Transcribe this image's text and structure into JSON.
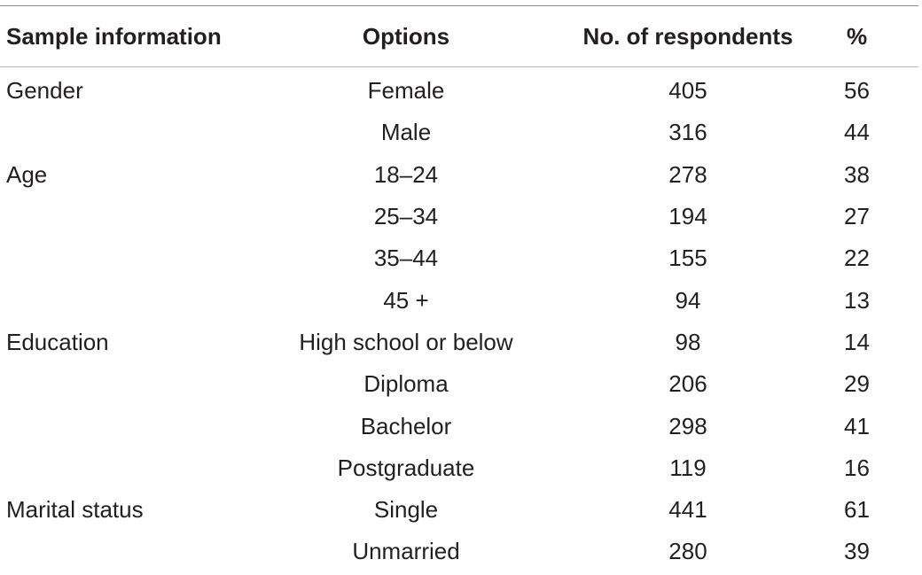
{
  "table": {
    "headers": {
      "info": "Sample information",
      "options": "Options",
      "respondents": "No. of respondents",
      "percent": "%"
    },
    "rows": [
      {
        "category": "Gender",
        "option": "Female",
        "count": "405",
        "percent": "56"
      },
      {
        "category": "",
        "option": "Male",
        "count": "316",
        "percent": "44"
      },
      {
        "category": "Age",
        "option": "18–24",
        "count": "278",
        "percent": "38"
      },
      {
        "category": "",
        "option": "25–34",
        "count": "194",
        "percent": "27"
      },
      {
        "category": "",
        "option": "35–44",
        "count": "155",
        "percent": "22"
      },
      {
        "category": "",
        "option": "45 +",
        "count": "94",
        "percent": "13"
      },
      {
        "category": "Education",
        "option": "High school or below",
        "count": "98",
        "percent": "14"
      },
      {
        "category": "",
        "option": "Diploma",
        "count": "206",
        "percent": "29"
      },
      {
        "category": "",
        "option": "Bachelor",
        "count": "298",
        "percent": "41"
      },
      {
        "category": "",
        "option": "Postgraduate",
        "count": "119",
        "percent": "16"
      },
      {
        "category": "Marital status",
        "option": "Single",
        "count": "441",
        "percent": "61"
      },
      {
        "category": "",
        "option": "Unmarried",
        "count": "280",
        "percent": "39"
      }
    ]
  }
}
